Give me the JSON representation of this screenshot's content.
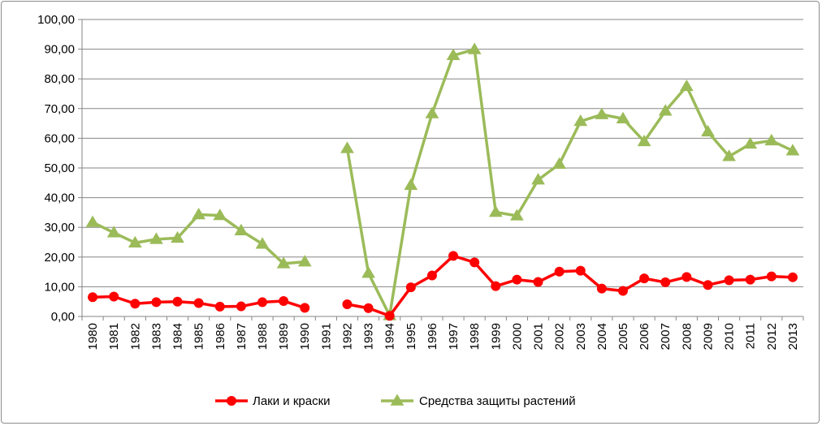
{
  "chart_data": {
    "type": "line",
    "title": "",
    "xlabel": "",
    "ylabel": "",
    "ylim": [
      0,
      100
    ],
    "y_ticks": [
      "0,00",
      "10,00",
      "20,00",
      "30,00",
      "40,00",
      "50,00",
      "60,00",
      "70,00",
      "80,00",
      "90,00",
      "100,00"
    ],
    "y_tick_values": [
      0,
      10,
      20,
      30,
      40,
      50,
      60,
      70,
      80,
      90,
      100
    ],
    "categories": [
      "1980",
      "1981",
      "1982",
      "1983",
      "1984",
      "1985",
      "1986",
      "1987",
      "1988",
      "1989",
      "1990",
      "1991",
      "1992",
      "1993",
      "1994",
      "1995",
      "1996",
      "1997",
      "1998",
      "1999",
      "2000",
      "2001",
      "2002",
      "2003",
      "2004",
      "2005",
      "2006",
      "2007",
      "2008",
      "2009",
      "2010",
      "2011",
      "2012",
      "2013"
    ],
    "grid": "horizontal",
    "legend_position": "bottom",
    "series": [
      {
        "name": "Лаки и краски",
        "color": "#ff0000",
        "marker": "circle",
        "values": [
          6.5,
          6.7,
          4.3,
          4.8,
          5.0,
          4.5,
          3.3,
          3.4,
          4.8,
          5.2,
          2.9,
          null,
          4.1,
          2.8,
          0.2,
          9.8,
          13.8,
          20.4,
          18.2,
          10.2,
          12.4,
          11.6,
          15.1,
          15.4,
          9.4,
          8.6,
          12.8,
          11.5,
          13.3,
          10.6,
          12.2,
          12.4,
          13.5,
          13.2
        ]
      },
      {
        "name": "Средства защиты растений",
        "color": "#9bbb59",
        "marker": "triangle",
        "values": [
          31.7,
          28.2,
          24.8,
          26.0,
          26.4,
          34.3,
          34.0,
          28.9,
          24.4,
          17.8,
          18.4,
          null,
          56.6,
          14.6,
          0.3,
          44.2,
          68.3,
          87.9,
          89.9,
          35.1,
          33.9,
          46.0,
          51.3,
          65.7,
          68.0,
          66.6,
          58.9,
          69.2,
          77.5,
          62.2,
          53.9,
          58.1,
          59.2,
          55.8
        ]
      }
    ]
  }
}
